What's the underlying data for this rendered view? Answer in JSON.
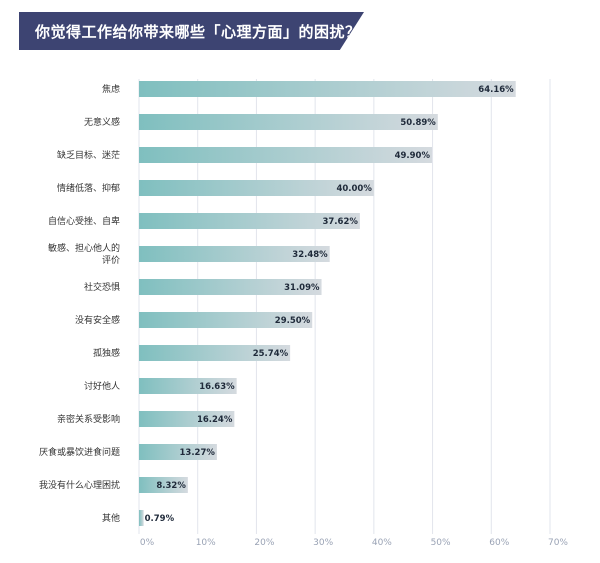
{
  "title": "你觉得工作给你带来哪些「心理方面」的困扰？",
  "colors": {
    "banner": "#3d4472",
    "bar_start": "#7fbfbf",
    "bar_end": "#d5dadf",
    "grid": "#e2e5ec",
    "tick": "#9aa3b5"
  },
  "chart_data": {
    "type": "bar",
    "orientation": "horizontal",
    "title": "你觉得工作给你带来哪些「心理方面」的困扰？",
    "categories": [
      [
        "焦虑"
      ],
      [
        "无意义感"
      ],
      [
        "缺乏目标、迷茫"
      ],
      [
        "情绪低落、抑郁"
      ],
      [
        "自信心受挫、自卑"
      ],
      [
        "敏感、担心他人的",
        "评价"
      ],
      [
        "社交恐惧"
      ],
      [
        "没有安全感"
      ],
      [
        "孤独感"
      ],
      [
        "讨好他人"
      ],
      [
        "亲密关系受影响"
      ],
      [
        "厌食或暴饮进食问题"
      ],
      [
        "我没有什么心理困扰"
      ],
      [
        "其他"
      ]
    ],
    "values": [
      64.16,
      50.89,
      49.9,
      40.0,
      37.62,
      32.48,
      31.09,
      29.5,
      25.74,
      16.63,
      16.24,
      13.27,
      8.32,
      0.79
    ],
    "value_labels": [
      "64.16%",
      "50.89%",
      "49.90%",
      "40.00%",
      "37.62%",
      "32.48%",
      "31.09%",
      "29.50%",
      "25.74%",
      "16.63%",
      "16.24%",
      "13.27%",
      "8.32%",
      "0.79%"
    ],
    "xlim": [
      0,
      70
    ],
    "xticks": [
      0,
      10,
      20,
      30,
      40,
      50,
      60,
      70
    ],
    "xtick_labels": [
      "0%",
      "10%",
      "20%",
      "30%",
      "40%",
      "50%",
      "60%",
      "70%"
    ],
    "grid": true
  }
}
